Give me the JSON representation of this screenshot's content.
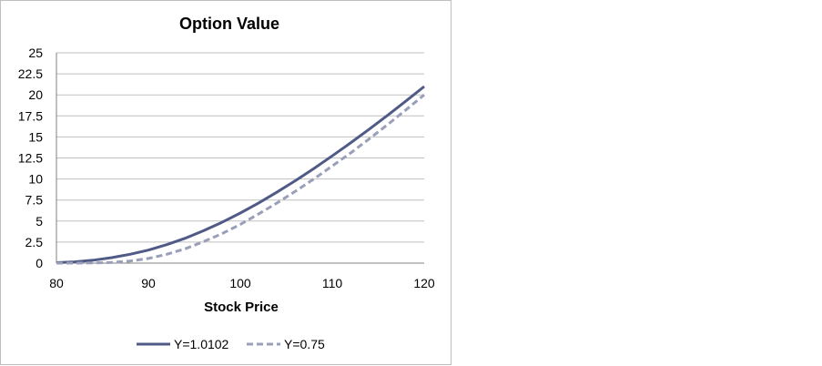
{
  "chart_data": {
    "type": "line",
    "title": "Option Value",
    "xlabel": "Stock Price",
    "ylabel": "",
    "xlim": [
      80,
      120
    ],
    "ylim": [
      0,
      25
    ],
    "x_ticks": [
      "80",
      "90",
      "100",
      "110",
      "120"
    ],
    "y_ticks": [
      "0",
      "2.5",
      "5",
      "7.5",
      "10",
      "12.5",
      "15",
      "17.5",
      "20",
      "22.5",
      "25"
    ],
    "grid": "horizontal",
    "legend_position": "bottom",
    "x": [
      80,
      82,
      84,
      86,
      88,
      90,
      92,
      94,
      96,
      98,
      100,
      102,
      104,
      106,
      108,
      110,
      112,
      114,
      116,
      118,
      120
    ],
    "series": [
      {
        "name": "Y=1.0102",
        "style": "solid",
        "color": "#4f5b86",
        "values": [
          0.05,
          0.15,
          0.35,
          0.65,
          1.05,
          1.55,
          2.2,
          2.95,
          3.85,
          4.85,
          5.95,
          7.15,
          8.45,
          9.8,
          11.25,
          12.75,
          14.3,
          15.9,
          17.55,
          19.25,
          21.0
        ]
      },
      {
        "name": "Y=0.75",
        "style": "dashed",
        "color": "#9a9fb9",
        "values": [
          0.0,
          0.0,
          0.02,
          0.08,
          0.25,
          0.55,
          1.05,
          1.7,
          2.55,
          3.5,
          4.6,
          5.85,
          7.15,
          8.55,
          10.0,
          11.55,
          13.1,
          14.75,
          16.45,
          18.2,
          20.0
        ]
      }
    ]
  }
}
